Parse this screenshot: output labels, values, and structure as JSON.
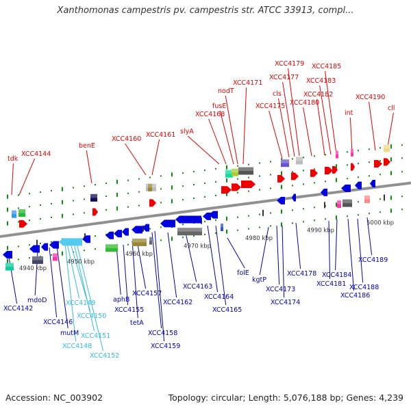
{
  "title": "Xanthomonas campestris pv. campestris str. ATCC 33913, compl...",
  "footer": {
    "accession": "Accession: NC_003902",
    "summary": "Topology: circular; Length: 5,076,188 bp; Genes: 4,239"
  },
  "colors": {
    "forward_label": "#e00000",
    "reverse_label": "#0000aa",
    "rna_label": "#33bbdd",
    "forward_feature": "#ee0000",
    "reverse_feature": "#0000dd",
    "tick": "#118811",
    "axis": "#909090"
  },
  "scale_labels": [
    "4940 kbp",
    "4950 kbp",
    "4960 kbp",
    "4970 kbp",
    "4980 kbp",
    "4990 kbp",
    "5000 kbp"
  ],
  "forward_labels": [
    "tdk",
    "XCC4144",
    "benE",
    "XCC4160",
    "XCC4161",
    "slyA",
    "XCC4168",
    "fusE",
    "nodT",
    "XCC4171",
    "XCC4175",
    "cls",
    "XCC4177",
    "XCC4179",
    "XCC4180",
    "XCC4182",
    "XCC4183",
    "XCC4185",
    "int",
    "XCC4190",
    "cll"
  ],
  "reverse_labels": [
    "XCC4142",
    "mdoD",
    "XCC4146",
    "mutM",
    "aphB",
    "XCC4155",
    "tetA",
    "XCC4157",
    "XCC4158",
    "XCC4159",
    "XCC4162",
    "XCC4163",
    "XCC4164",
    "XCC4165",
    "folE",
    "kgtP",
    "XCC4173",
    "XCC4174",
    "XCC4178",
    "XCC4181",
    "XCC4184",
    "XCC4186",
    "XCC4188",
    "XCC4189"
  ],
  "rna_labels": [
    "XCC4149",
    "XCC4150",
    "XCC4151",
    "XCC4148",
    "XCC4152"
  ]
}
